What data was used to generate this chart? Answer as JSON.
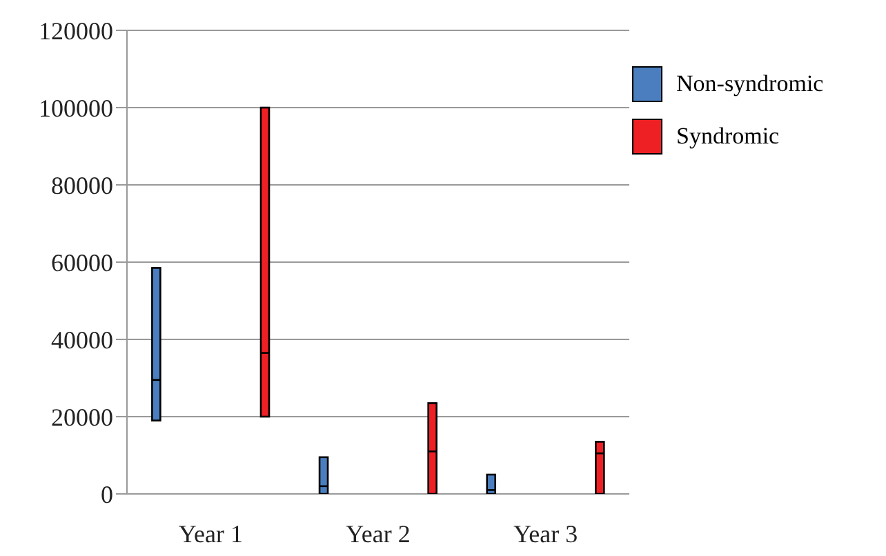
{
  "chart_data": {
    "type": "box",
    "categories": [
      "Year 1",
      "Year 2",
      "Year 3"
    ],
    "series": [
      {
        "name": "Non-syndromic",
        "color": "#4a7ebf",
        "boxes": [
          {
            "low": 19000,
            "q1": 19000,
            "median": 29500,
            "q3": 58500,
            "high": 58500
          },
          {
            "low": 0,
            "q1": 0,
            "median": 2000,
            "q3": 9500,
            "high": 9500
          },
          {
            "low": 0,
            "q1": 0,
            "median": 1000,
            "q3": 5000,
            "high": 5000
          }
        ]
      },
      {
        "name": "Syndromic",
        "color": "#ee2024",
        "boxes": [
          {
            "low": 20000,
            "q1": 20000,
            "median": 36500,
            "q3": 100000,
            "high": 100000
          },
          {
            "low": 0,
            "q1": 0,
            "median": 11000,
            "q3": 23500,
            "high": 23500
          },
          {
            "low": 0,
            "q1": 0,
            "median": 10500,
            "q3": 13500,
            "high": 13500
          }
        ]
      }
    ],
    "ylim": [
      0,
      120000
    ],
    "yticks": [
      0,
      20000,
      40000,
      60000,
      80000,
      100000,
      120000
    ],
    "grid": "y",
    "legend": "top right"
  }
}
